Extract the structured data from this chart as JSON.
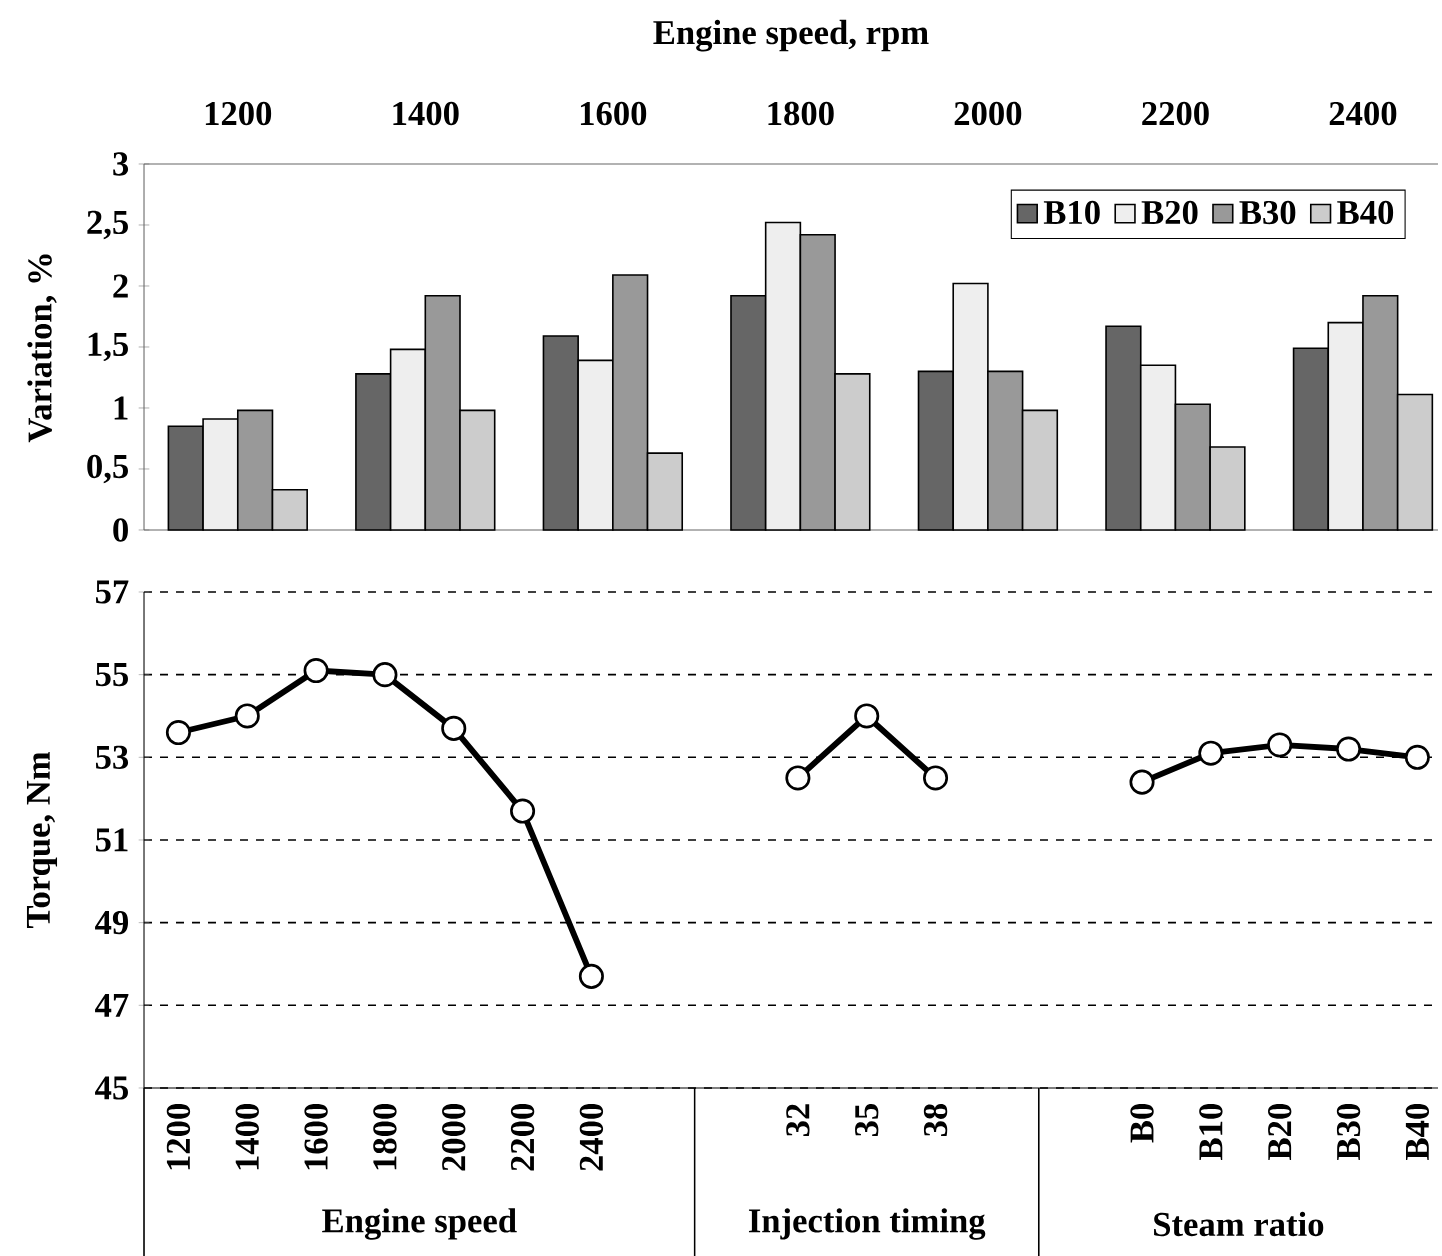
{
  "chart_data": [
    {
      "type": "bar",
      "xlabel": "Engine speed, rpm",
      "ylabel": "Variation, %",
      "categories": [
        "1200",
        "1400",
        "1600",
        "1800",
        "2000",
        "2200",
        "2400"
      ],
      "series": [
        {
          "name": "B10",
          "color": "#666666",
          "values": [
            0.85,
            1.28,
            1.59,
            1.92,
            1.3,
            1.67,
            1.49
          ]
        },
        {
          "name": "B20",
          "color": "#eeeeee",
          "values": [
            0.91,
            1.48,
            1.39,
            2.52,
            2.02,
            1.35,
            1.7
          ]
        },
        {
          "name": "B30",
          "color": "#999999",
          "values": [
            0.98,
            1.92,
            2.09,
            2.42,
            1.3,
            1.03,
            1.92
          ]
        },
        {
          "name": "B40",
          "color": "#cccccc",
          "values": [
            0.33,
            0.98,
            0.63,
            1.28,
            0.98,
            0.68,
            1.11
          ]
        }
      ],
      "ylim": [
        0,
        3
      ],
      "yticks": [
        0,
        {
          "value": 0.5,
          "label": "0,5"
        },
        1,
        {
          "value": 1.5,
          "label": "1,5"
        },
        2,
        {
          "value": 2.5,
          "label": "2,5"
        },
        3
      ],
      "legend": "top right"
    },
    {
      "type": "line",
      "ylabel": "Torque, Nm",
      "categories": [
        "1200",
        "1400",
        "1600",
        "1800",
        "2000",
        "2200",
        "2400",
        null,
        null,
        "32",
        "35",
        "38",
        null,
        null,
        "B0",
        "B10",
        "B20",
        "B30",
        "B40"
      ],
      "series": [
        {
          "color": "#000000",
          "values": [
            53.6,
            54.0,
            55.1,
            55.0,
            53.7,
            51.7,
            47.7,
            null,
            null,
            52.5,
            54.0,
            52.5,
            null,
            null,
            52.4,
            53.1,
            53.3,
            53.2,
            53.0
          ]
        }
      ],
      "ylim": [
        45,
        57
      ],
      "yticks": [
        45,
        47,
        49,
        51,
        53,
        55,
        57
      ],
      "grid": "y",
      "marker": "circle",
      "line_style": "solid",
      "annotations": [
        "Engine speed",
        "Injection timing",
        "Steam ratio"
      ]
    }
  ]
}
